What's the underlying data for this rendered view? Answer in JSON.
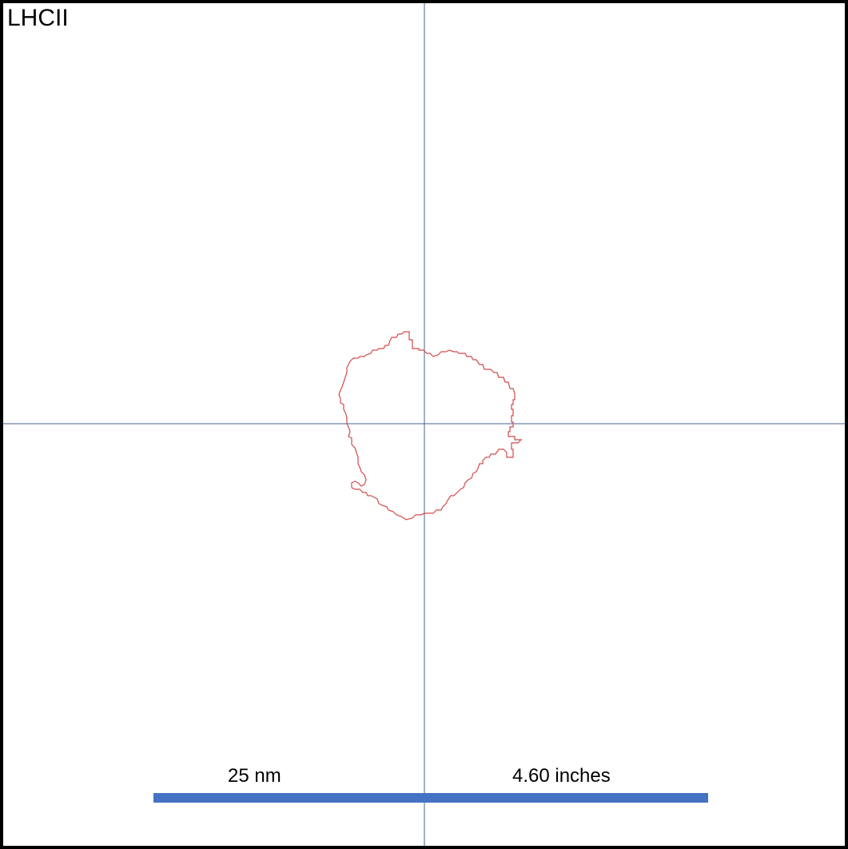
{
  "panel": {
    "label": "LHCII"
  },
  "scale_bar": {
    "length_label": "25 nm",
    "print_size_label": "4.60 inches"
  },
  "colors": {
    "frame": "#000000",
    "axes": "#44638f",
    "outline": "#d24a4a",
    "scale_bar": "#4472c4"
  }
}
